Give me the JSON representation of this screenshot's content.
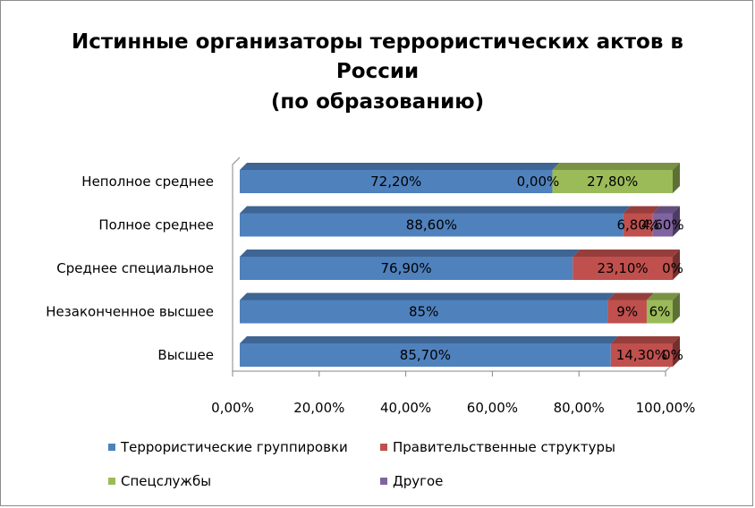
{
  "chart_data": {
    "type": "bar",
    "orientation": "horizontal",
    "stacked": true,
    "percent_stacked": true,
    "three_d": true,
    "title": [
      "Истинные организаторы террористических актов в",
      "России",
      "(по образованию)"
    ],
    "categories": [
      "Неполное среднее",
      "Полное среднее",
      "Среднее специальное",
      "Незаконченное высшее",
      "Высшее"
    ],
    "series": [
      {
        "name": "Террористические группировки",
        "color": "#4f81bd",
        "values": [
          72.2,
          88.6,
          76.9,
          85,
          85.7
        ],
        "labels": [
          "72,20%",
          "88,60%",
          "76,90%",
          "85%",
          "85,70%"
        ]
      },
      {
        "name": "Правительственные структуры",
        "color": "#c0504d",
        "values": [
          0,
          6.8,
          23.1,
          9,
          14.3
        ],
        "labels": [
          "0,00%",
          "6,80%",
          "23,10%",
          "9%",
          "14,30%"
        ]
      },
      {
        "name": "Спецслужбы",
        "color": "#9bbb59",
        "values": [
          27.8,
          0,
          0,
          6,
          0
        ],
        "labels": [
          "27,80%",
          "",
          "",
          "6%",
          ""
        ]
      },
      {
        "name": "Другое",
        "color": "#8064a2",
        "values": [
          0,
          4.6,
          0,
          0,
          0
        ],
        "labels": [
          "",
          "4,60%",
          "0%",
          "",
          "0%"
        ]
      }
    ],
    "x_ticks": [
      "0,00%",
      "20,00%",
      "40,00%",
      "60,00%",
      "80,00%",
      "100,00%"
    ],
    "xlim": [
      0,
      100
    ],
    "grid": false,
    "legend": "bottom"
  }
}
